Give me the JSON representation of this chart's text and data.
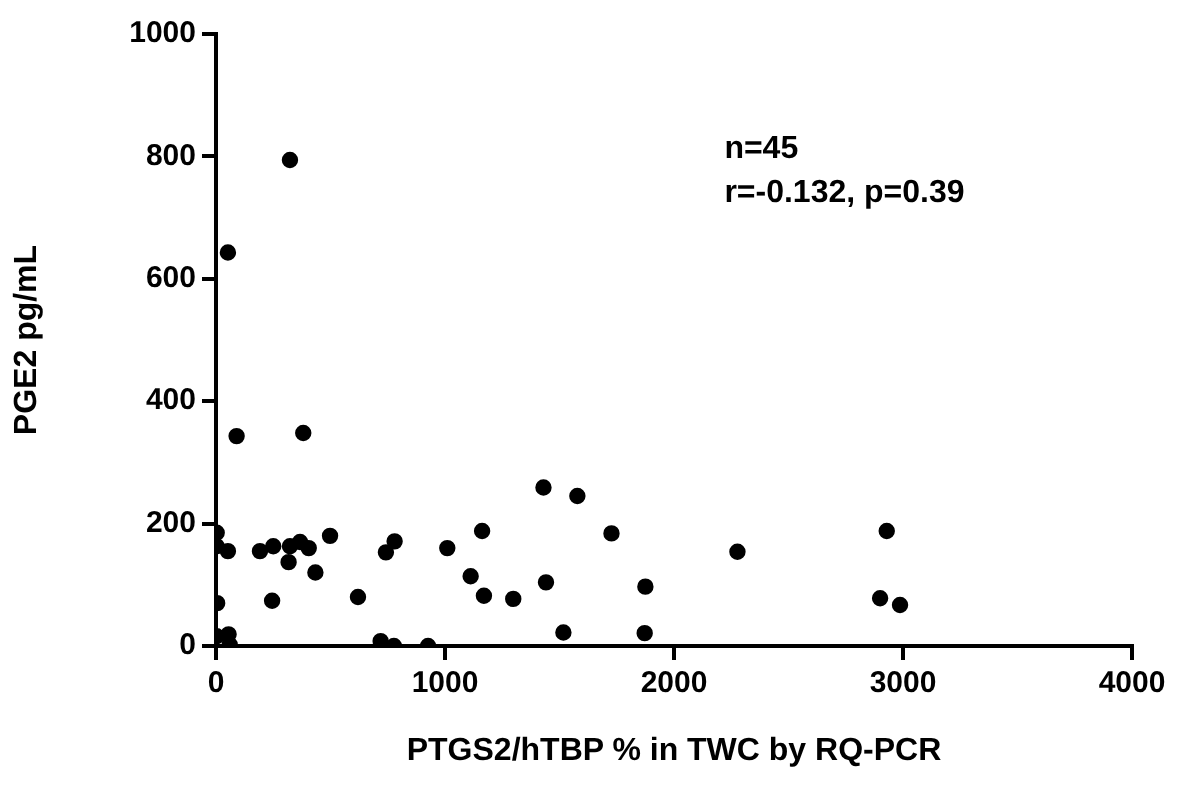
{
  "chart_data": {
    "type": "scatter",
    "xlabel": "PTGS2/hTBP % in TWC by RQ-PCR",
    "ylabel": "PGE2 pg/mL",
    "annotations": [
      "n=45",
      "r=-0.132, p=0.39"
    ],
    "xlim": [
      0,
      4000
    ],
    "xticks": [
      0,
      1000,
      2000,
      3000,
      4000
    ],
    "ylim": [
      0,
      1000
    ],
    "yticks": [
      0,
      200,
      400,
      600,
      800,
      1000
    ],
    "grid": false,
    "legend": false,
    "marker": "circle",
    "series": [
      {
        "color": "#000000",
        "x": [
          52,
          90,
          381,
          3,
          3,
          52,
          5,
          3,
          55,
          60,
          192,
          250,
          245,
          317,
          323,
          367,
          405,
          434,
          498,
          620,
          719,
          742,
          780,
          777,
          926,
          1010,
          1112,
          1170,
          1162,
          1298,
          1430,
          1441,
          1517,
          1578,
          1727,
          1875,
          1872,
          2277,
          2929,
          2900,
          2987,
          323
        ],
        "values": [
          643,
          343,
          348,
          185,
          163,
          155,
          70,
          16,
          19,
          2,
          155,
          163,
          74,
          137,
          163,
          170,
          160,
          120,
          180,
          80,
          8,
          153,
          171,
          0,
          0,
          160,
          114,
          82,
          188,
          77,
          259,
          104,
          22,
          245,
          184,
          97,
          21,
          154,
          188,
          78,
          67,
          794
        ]
      }
    ]
  }
}
